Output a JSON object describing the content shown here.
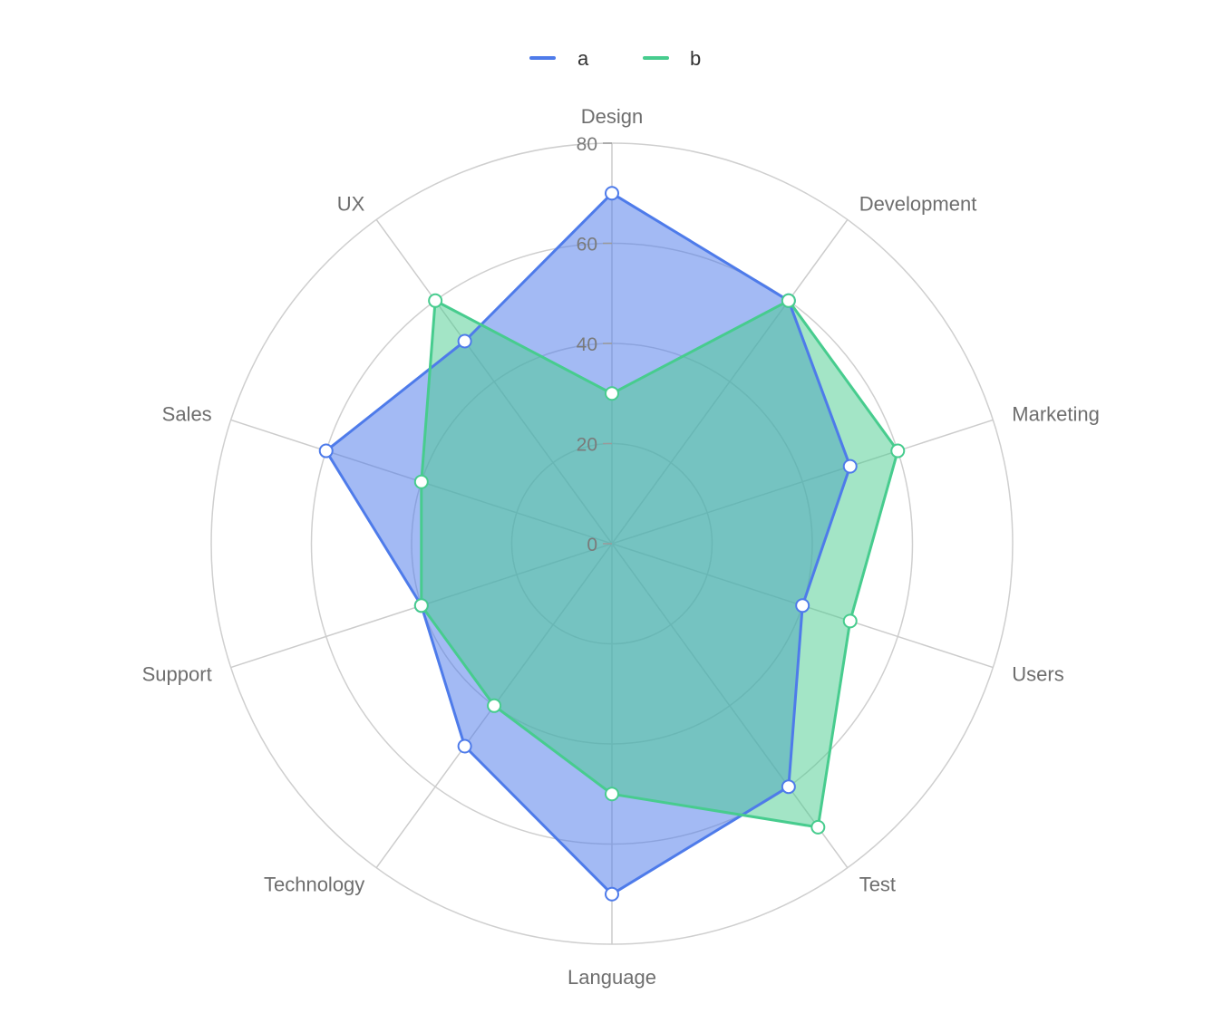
{
  "colors": {
    "a": "#4e7bea",
    "b": "#47cc8e",
    "grid": "#cfcfcf",
    "spoke": "#cccccc"
  },
  "chart_data": {
    "type": "radar",
    "indicators": [
      "Design",
      "Development",
      "Marketing",
      "Users",
      "Test",
      "Language",
      "Technology",
      "Support",
      "Sales",
      "UX"
    ],
    "max": 80,
    "ticks": [
      0,
      20,
      40,
      60,
      80
    ],
    "legend": {
      "position": "top-center"
    },
    "series": [
      {
        "name": "a",
        "values": [
          70,
          60,
          50,
          40,
          60,
          70,
          50,
          40,
          60,
          50
        ]
      },
      {
        "name": "b",
        "values": [
          30,
          60,
          60,
          50,
          70,
          50,
          40,
          40,
          40,
          60
        ]
      }
    ]
  }
}
